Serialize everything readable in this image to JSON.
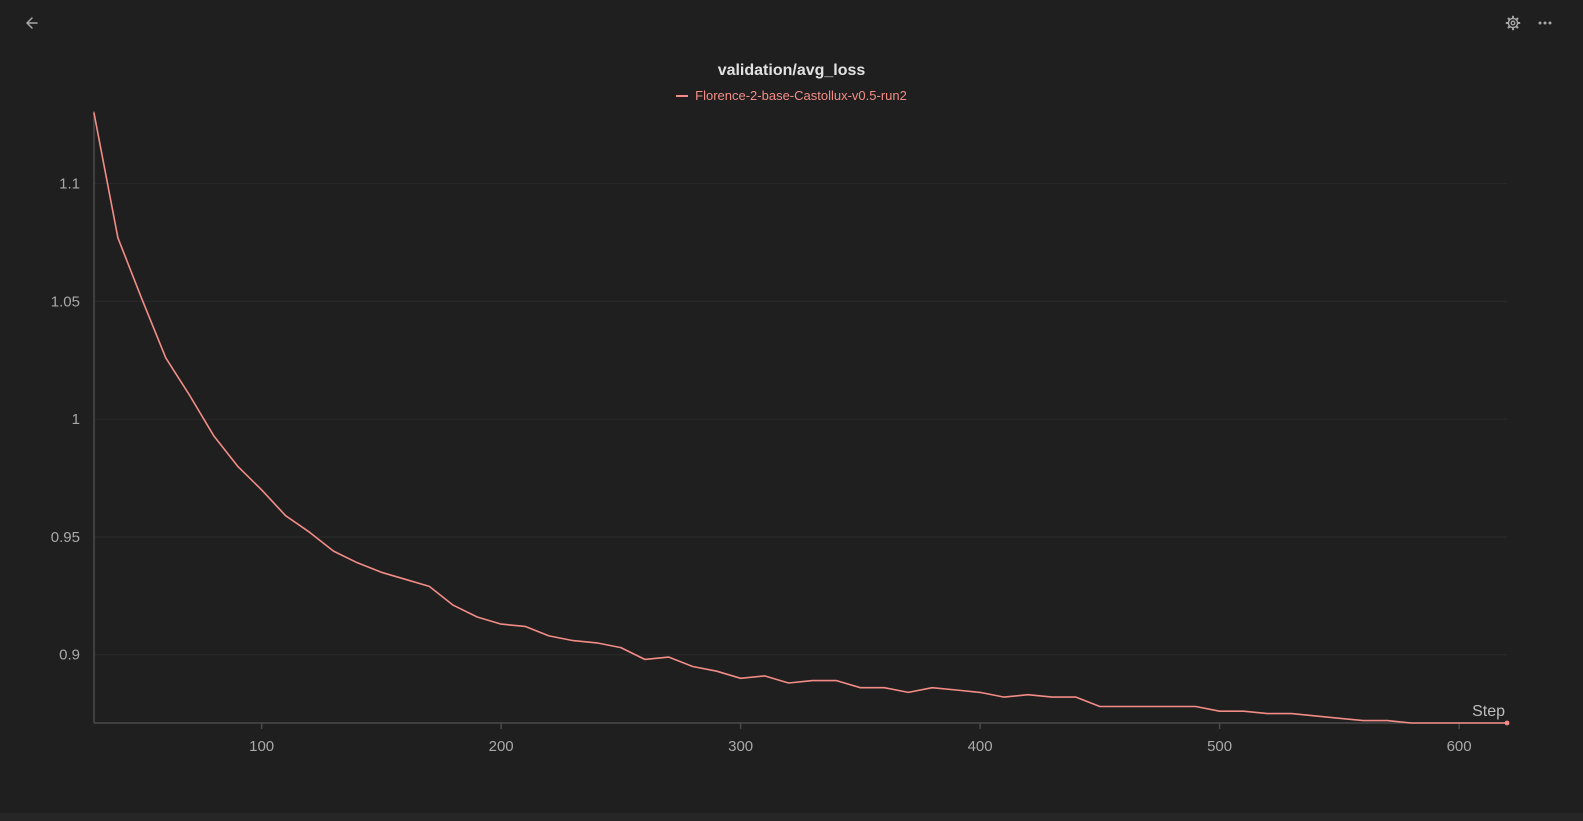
{
  "toolbar": {
    "back_icon": "arrow-left-icon",
    "settings_icon": "gear-icon",
    "more_icon": "more-horizontal-icon"
  },
  "colors": {
    "background": "#1f1f1f",
    "series": "#f28c86",
    "grid": "#2b2b2b",
    "axis": "#4a4a4a"
  },
  "chart_data": {
    "type": "line",
    "title": "validation/avg_loss",
    "xlabel": "Step",
    "ylabel": "",
    "xlim": [
      30,
      620
    ],
    "ylim": [
      0.871,
      1.13
    ],
    "xticks": [
      100,
      200,
      300,
      400,
      500,
      600
    ],
    "yticks": [
      0.9,
      0.95,
      1,
      1.05,
      1.1
    ],
    "ytick_labels": [
      "0.9",
      "0.95",
      "1",
      "1.05",
      "1.1"
    ],
    "grid": "horizontal",
    "legend_position": "top-center",
    "series": [
      {
        "name": "Florence-2-base-Castollux-v0.5-run2",
        "color": "#f28c86",
        "x": [
          30,
          40,
          50,
          60,
          70,
          80,
          90,
          100,
          110,
          120,
          130,
          140,
          150,
          160,
          170,
          180,
          190,
          200,
          210,
          220,
          230,
          240,
          250,
          260,
          270,
          280,
          290,
          300,
          310,
          320,
          330,
          340,
          350,
          360,
          370,
          380,
          390,
          400,
          410,
          420,
          430,
          440,
          450,
          460,
          470,
          480,
          490,
          500,
          510,
          520,
          530,
          540,
          550,
          560,
          570,
          580,
          590,
          600,
          610,
          620
        ],
        "y": [
          1.13,
          1.077,
          1.051,
          1.026,
          1.01,
          0.993,
          0.98,
          0.97,
          0.959,
          0.952,
          0.944,
          0.939,
          0.935,
          0.932,
          0.929,
          0.921,
          0.916,
          0.913,
          0.912,
          0.908,
          0.906,
          0.905,
          0.903,
          0.898,
          0.899,
          0.895,
          0.893,
          0.89,
          0.891,
          0.888,
          0.889,
          0.889,
          0.886,
          0.886,
          0.884,
          0.886,
          0.885,
          0.884,
          0.882,
          0.883,
          0.882,
          0.882,
          0.878,
          0.878,
          0.878,
          0.878,
          0.878,
          0.876,
          0.876,
          0.875,
          0.875,
          0.874,
          0.873,
          0.872,
          0.872,
          0.871,
          0.871,
          0.871,
          0.871,
          0.871
        ]
      }
    ]
  }
}
